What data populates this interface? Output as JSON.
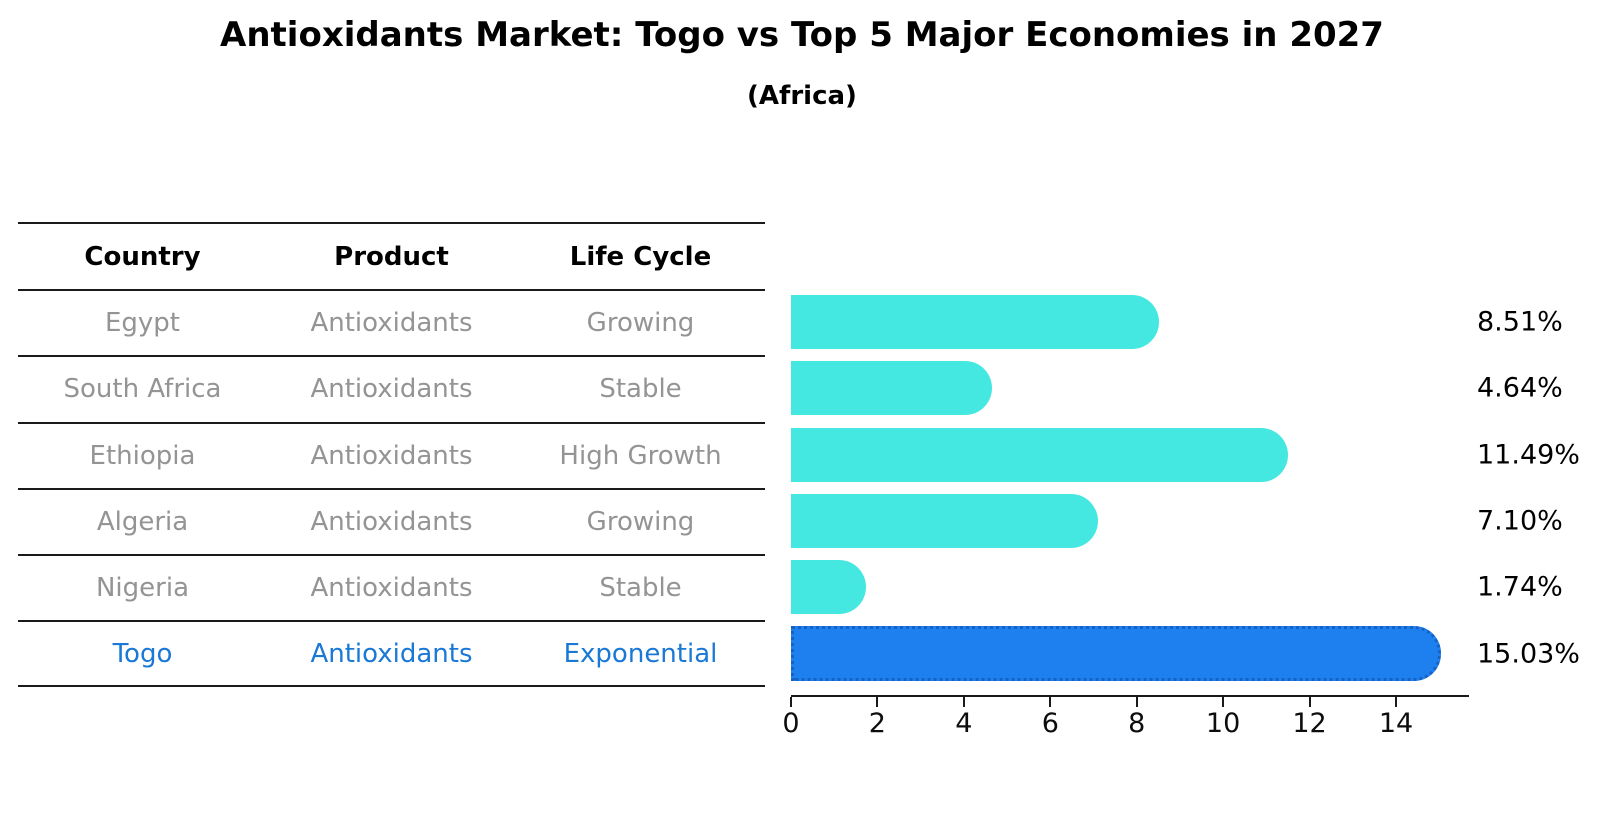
{
  "title": "Antioxidants Market: Togo vs Top 5 Major Economies in 2027",
  "subtitle": "(Africa)",
  "table": {
    "headers": [
      "Country",
      "Product",
      "Life Cycle"
    ],
    "rows": [
      {
        "country": "Egypt",
        "product": "Antioxidants",
        "life_cycle": "Growing",
        "highlight": false
      },
      {
        "country": "South Africa",
        "product": "Antioxidants",
        "life_cycle": "Stable",
        "highlight": false
      },
      {
        "country": "Ethiopia",
        "product": "Antioxidants",
        "life_cycle": "High Growth",
        "highlight": false
      },
      {
        "country": "Algeria",
        "product": "Antioxidants",
        "life_cycle": "Growing",
        "highlight": false
      },
      {
        "country": "Nigeria",
        "product": "Antioxidants",
        "life_cycle": "Stable",
        "highlight": true
      }
    ],
    "highlight_row": {
      "country": "Togo",
      "product": "Antioxidants",
      "life_cycle": "Exponential"
    }
  },
  "chart_data": {
    "type": "bar",
    "orientation": "horizontal",
    "title": "Antioxidants Market: Togo vs Top 5 Major Economies in 2027",
    "subtitle": "(Africa)",
    "categories": [
      "Egypt",
      "South Africa",
      "Ethiopia",
      "Algeria",
      "Nigeria",
      "Togo"
    ],
    "values": [
      8.51,
      4.64,
      11.49,
      7.1,
      1.74,
      15.03
    ],
    "value_labels": [
      "8.51%",
      "4.64%",
      "11.49%",
      "7.10%",
      "1.74%",
      "15.03%"
    ],
    "highlight_index": 5,
    "x_ticks": [
      "0",
      "2",
      "4",
      "6",
      "8",
      "10",
      "12",
      "14"
    ],
    "x_tick_values": [
      0,
      2,
      4,
      6,
      8,
      10,
      12,
      14
    ],
    "xlim": [
      0,
      15.69
    ],
    "grid": false,
    "legend": "none",
    "bar_color": "#45e8e0",
    "highlight_bar_color": "#1e80ee",
    "highlight_border_color": "#1562c4",
    "highlight_text_color": "#1a78d6",
    "row_text_color": "#949494"
  }
}
